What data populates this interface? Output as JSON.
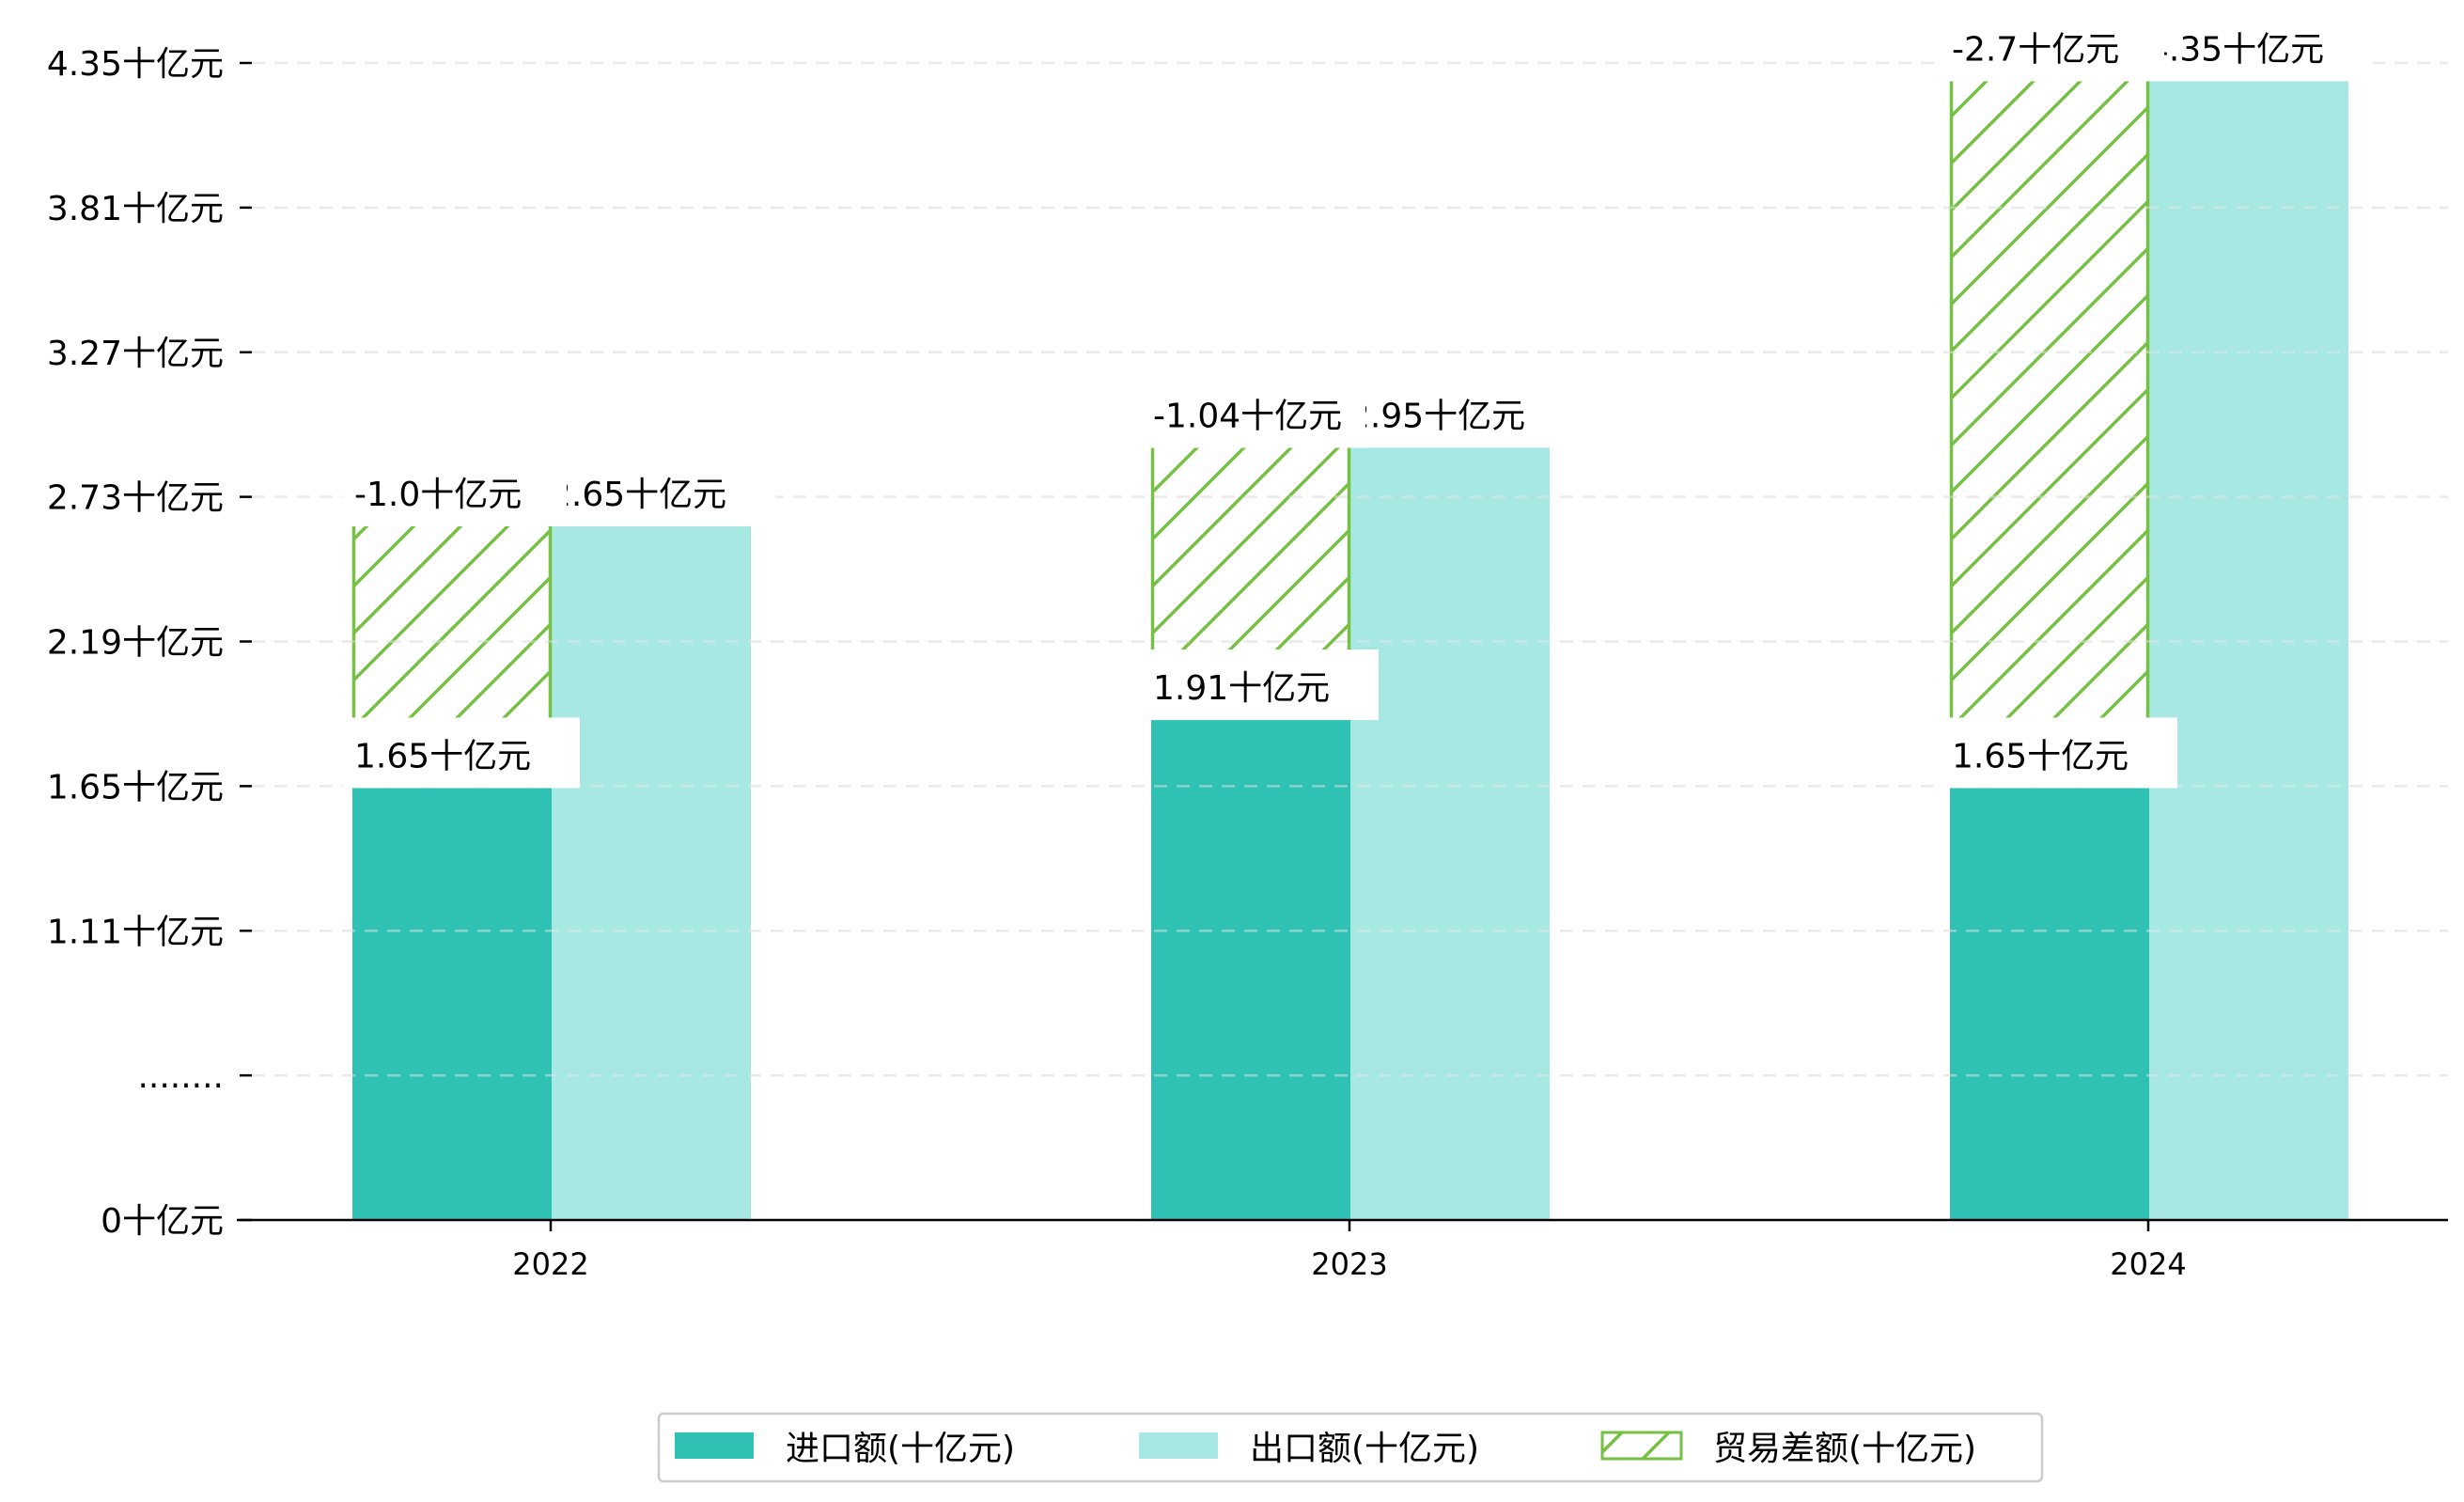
{
  "chart_data": {
    "type": "bar",
    "title": "",
    "xlabel": "",
    "ylabel": "",
    "categories": [
      "2022",
      "2023",
      "2024"
    ],
    "series": [
      {
        "name": "进口额(十亿元)",
        "values": [
          1.65,
          1.91,
          1.65
        ],
        "labels": [
          "1.65十亿元",
          "1.91十亿元",
          "1.65十亿元"
        ],
        "color": "#30C1B5"
      },
      {
        "name": "出口额(十亿元)",
        "values": [
          2.65,
          2.95,
          4.35
        ],
        "labels": [
          "2.65十亿元",
          "2.95十亿元",
          "4.35十亿元"
        ],
        "color": "#A8E8E2"
      },
      {
        "name": "贸易差额(十亿元)",
        "values": [
          -1.0,
          -1.04,
          -2.7
        ],
        "labels": [
          "-1.0十亿元",
          "-1.04十亿元",
          "-2.7十亿元"
        ],
        "color": "#76C043",
        "hatch": "/"
      }
    ],
    "ylim": [
      0,
      4.42
    ],
    "yticks": [
      "0十亿元",
      "........",
      "1.11十亿元",
      "1.65十亿元",
      "2.19十亿元",
      "2.73十亿元",
      "3.27十亿元",
      "3.81十亿元",
      "4.35十亿元"
    ],
    "grid": true,
    "legend": "bottom-center"
  }
}
